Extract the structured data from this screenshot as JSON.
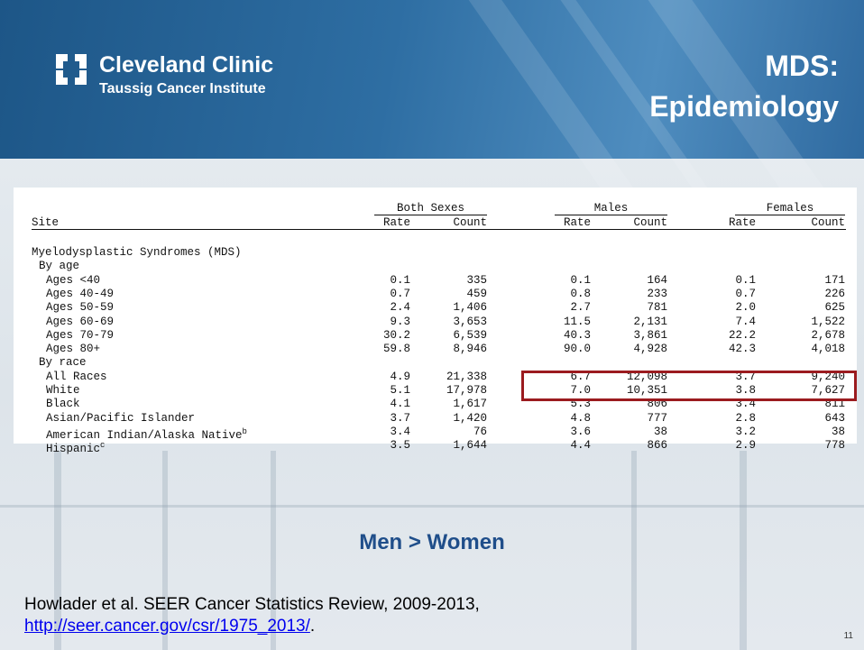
{
  "header": {
    "logo_name": "Cleveland Clinic",
    "logo_sub": "Taussig Cancer Institute",
    "title_lines": [
      "MDS:",
      "Epidemiology"
    ]
  },
  "table": {
    "group_headers": [
      "Both Sexes",
      "Males",
      "Females"
    ],
    "column_headers": [
      "Site",
      "Rate",
      "Count",
      "Rate",
      "Count",
      "Rate",
      "Count"
    ],
    "disease": "Myelodysplastic Syndromes (MDS)",
    "groups": [
      {
        "title": "By age",
        "rows": [
          {
            "label": "Ages <40",
            "values": [
              "0.1",
              "335",
              "0.1",
              "164",
              "0.1",
              "171"
            ]
          },
          {
            "label": "Ages 40-49",
            "values": [
              "0.7",
              "459",
              "0.8",
              "233",
              "0.7",
              "226"
            ]
          },
          {
            "label": "Ages 50-59",
            "values": [
              "2.4",
              "1,406",
              "2.7",
              "781",
              "2.0",
              "625"
            ]
          },
          {
            "label": "Ages 60-69",
            "values": [
              "9.3",
              "3,653",
              "11.5",
              "2,131",
              "7.4",
              "1,522"
            ]
          },
          {
            "label": "Ages 70-79",
            "values": [
              "30.2",
              "6,539",
              "40.3",
              "3,861",
              "22.2",
              "2,678"
            ]
          },
          {
            "label": "Ages 80+",
            "values": [
              "59.8",
              "8,946",
              "90.0",
              "4,928",
              "42.3",
              "4,018"
            ]
          }
        ]
      },
      {
        "title": "By race",
        "rows": [
          {
            "label": "All Races",
            "values": [
              "4.9",
              "21,338",
              "6.7",
              "12,098",
              "3.7",
              "9,240"
            ]
          },
          {
            "label": "White",
            "values": [
              "5.1",
              "17,978",
              "7.0",
              "10,351",
              "3.8",
              "7,627"
            ]
          },
          {
            "label": "Black",
            "values": [
              "4.1",
              "1,617",
              "5.3",
              "806",
              "3.4",
              "811"
            ]
          },
          {
            "label": "Asian/Pacific Islander",
            "values": [
              "3.7",
              "1,420",
              "4.8",
              "777",
              "2.8",
              "643"
            ]
          },
          {
            "label": "American Indian/Alaska Native",
            "note": "b",
            "values": [
              "3.4",
              "76",
              "3.6",
              "38",
              "3.2",
              "38"
            ]
          },
          {
            "label": "Hispanic",
            "note": "c",
            "values": [
              "3.5",
              "1,644",
              "4.4",
              "866",
              "2.9",
              "778"
            ]
          }
        ]
      }
    ]
  },
  "callout": "Men > Women",
  "citation": {
    "text": "Howlader et al. SEER Cancer Statistics Review, 2009-2013,",
    "link": "http://seer.cancer.gov/csr/1975_2013/",
    "link_suffix": "."
  },
  "page_number": "11"
}
